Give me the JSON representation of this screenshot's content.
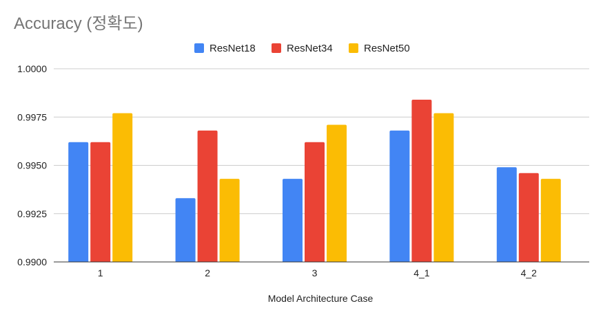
{
  "chart_data": {
    "type": "bar",
    "title": "Accuracy (정확도)",
    "xlabel": "Model Architecture Case",
    "ylabel": "",
    "categories": [
      "1",
      "2",
      "3",
      "4_1",
      "4_2"
    ],
    "series": [
      {
        "name": "ResNet18",
        "color": "#4285f4",
        "values": [
          0.9962,
          0.9933,
          0.9943,
          0.9968,
          0.9949
        ]
      },
      {
        "name": "ResNet34",
        "color": "#ea4335",
        "values": [
          0.9962,
          0.9968,
          0.9962,
          0.9984,
          0.9946
        ]
      },
      {
        "name": "ResNet50",
        "color": "#fbbc04",
        "values": [
          0.9977,
          0.9943,
          0.9971,
          0.9977,
          0.9943
        ]
      }
    ],
    "ylim": [
      0.99,
      1.0
    ],
    "yticks": [
      "0.9900",
      "0.9925",
      "0.9950",
      "0.9975",
      "1.0000"
    ],
    "ytick_values": [
      0.99,
      0.9925,
      0.995,
      0.9975,
      1.0
    ],
    "grid": true,
    "legend_position": "top"
  }
}
